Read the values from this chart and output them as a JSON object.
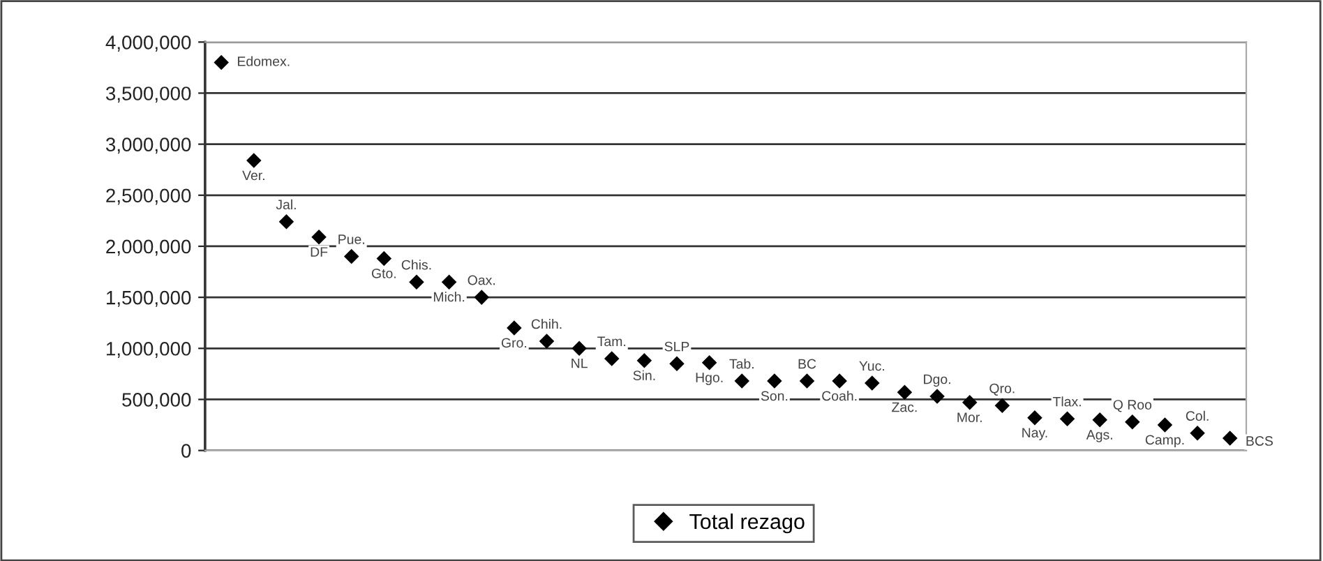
{
  "chart_data": {
    "type": "scatter",
    "categories": [
      null,
      null,
      null,
      null,
      null,
      null,
      null,
      null,
      null,
      null,
      null,
      null,
      null,
      null,
      null,
      null,
      null,
      null,
      null,
      null,
      null,
      null,
      null,
      null,
      null,
      null,
      null,
      null,
      null,
      null,
      null,
      null
    ],
    "series": [
      {
        "name": "Total rezago",
        "color": "#000000",
        "value_labels": [
          "Edomex.",
          "Ver.",
          "Jal.",
          "DF",
          "Pue.",
          "Gto.",
          "Chis.",
          "Mich.",
          "Oax.",
          "Gro.",
          "Chih.",
          "NL",
          "Tam.",
          "Sin.",
          "SLP",
          "Hgo.",
          "Tab.",
          "Son.",
          "BC",
          "Coah.",
          "Yuc.",
          "Zac.",
          "Dgo.",
          "Mor.",
          "Qro.",
          "Nay.",
          "Tlax.",
          "Ags.",
          "Q Roo",
          "Camp.",
          "Col.",
          "BCS"
        ],
        "values": [
          3800000,
          2840000,
          2240000,
          2090000,
          1900000,
          1880000,
          1650000,
          1650000,
          1500000,
          1200000,
          1070000,
          1000000,
          900000,
          880000,
          850000,
          860000,
          680000,
          680000,
          680000,
          680000,
          660000,
          570000,
          530000,
          470000,
          440000,
          320000,
          310000,
          300000,
          280000,
          250000,
          170000,
          120000
        ]
      }
    ],
    "ylim": [
      0,
      4000000
    ],
    "yticks": [
      {
        "value": 0,
        "label": "0"
      },
      {
        "value": 500000,
        "label": "500,000"
      },
      {
        "value": 1000000,
        "label": "1,000,000"
      },
      {
        "value": 1500000,
        "label": "1,500,000"
      },
      {
        "value": 2000000,
        "label": "2,000,000"
      },
      {
        "value": 2500000,
        "label": "2,500,000"
      },
      {
        "value": 3000000,
        "label": "3,000,000"
      },
      {
        "value": 3500000,
        "label": "3,500,000"
      },
      {
        "value": 4000000,
        "label": "4,000,000"
      }
    ],
    "grid": "y",
    "legend": "bottom",
    "marker": "diamond",
    "tick_labels": "y"
  }
}
